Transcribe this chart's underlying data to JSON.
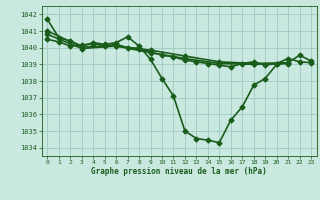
{
  "title": "Graphe pression niveau de la mer (hPa)",
  "background_color": "#c8e8e0",
  "plot_bg_color": "#c8e8e0",
  "grid_color": "#a0c8c0",
  "line_color": "#1a5c1a",
  "xlim": [
    -0.5,
    23.5
  ],
  "ylim": [
    1033.5,
    1042.5
  ],
  "yticks": [
    1034,
    1035,
    1036,
    1037,
    1038,
    1039,
    1040,
    1041,
    1042
  ],
  "xticks": [
    0,
    1,
    2,
    3,
    4,
    5,
    6,
    7,
    8,
    9,
    10,
    11,
    12,
    13,
    14,
    15,
    16,
    17,
    18,
    19,
    20,
    21,
    22,
    23
  ],
  "figsize": [
    3.2,
    2.0
  ],
  "dpi": 100,
  "series": [
    {
      "x": [
        0,
        1,
        2,
        3,
        4,
        5,
        6,
        7,
        8,
        9,
        10,
        11,
        12,
        13,
        14,
        15,
        16,
        17,
        18,
        19,
        20,
        21,
        22,
        23
      ],
      "y": [
        1041.7,
        1040.6,
        1040.4,
        1040.1,
        1040.3,
        1040.2,
        1040.3,
        1040.65,
        1040.1,
        1039.3,
        1038.15,
        1037.1,
        1035.0,
        1034.55,
        1034.45,
        1034.3,
        1035.65,
        1036.45,
        1037.75,
        1038.15,
        1039.0,
        1039.1,
        1039.55,
        1039.2
      ],
      "marker": "D",
      "markersize": 2.5,
      "linewidth": 1.2
    },
    {
      "x": [
        0,
        1,
        2,
        3,
        4,
        5,
        6,
        7,
        8,
        9,
        10,
        11,
        12,
        13,
        14,
        15,
        16,
        17,
        18,
        19,
        20,
        21,
        22,
        23
      ],
      "y": [
        1040.5,
        1040.35,
        1040.1,
        1040.15,
        1040.25,
        1040.1,
        1040.2,
        1040.0,
        1039.95,
        1039.75,
        1039.55,
        1039.45,
        1039.25,
        1039.15,
        1039.05,
        1038.95,
        1038.85,
        1039.05,
        1039.15,
        1038.95,
        1039.05,
        1039.35,
        1039.15,
        1039.1
      ],
      "marker": "D",
      "markersize": 2.5,
      "linewidth": 1.2
    },
    {
      "x": [
        0,
        3,
        6,
        9,
        12,
        15,
        18,
        21
      ],
      "y": [
        1041.0,
        1040.05,
        1040.1,
        1039.85,
        1039.5,
        1039.15,
        1039.05,
        1039.1
      ],
      "marker": "D",
      "markersize": 2.5,
      "linewidth": 1.2
    },
    {
      "x": [
        0,
        3,
        6,
        9,
        12,
        15,
        18,
        21
      ],
      "y": [
        1040.8,
        1039.95,
        1040.1,
        1039.7,
        1039.35,
        1039.05,
        1039.0,
        1039.05
      ],
      "marker": "D",
      "markersize": 2.5,
      "linewidth": 1.2
    }
  ]
}
